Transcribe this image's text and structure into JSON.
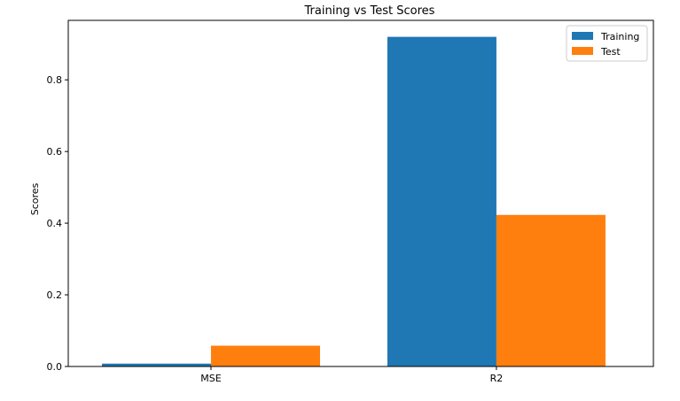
{
  "chart_data": {
    "type": "bar",
    "title": "Training vs Test Scores",
    "xlabel": "",
    "ylabel": "Scores",
    "categories": [
      "MSE",
      "R2"
    ],
    "series": [
      {
        "name": "Training",
        "values": [
          0.008,
          0.92
        ],
        "color": "#1f77b4"
      },
      {
        "name": "Test",
        "values": [
          0.058,
          0.423
        ],
        "color": "#ff7f0e"
      }
    ],
    "ylim": [
      0,
      0.966
    ],
    "yticks": [
      "0.0",
      "0.2",
      "0.4",
      "0.6",
      "0.8"
    ],
    "ytick_values": [
      0,
      0.2,
      0.4,
      0.6,
      0.8
    ],
    "grid": false,
    "legend_position": "top-right"
  }
}
